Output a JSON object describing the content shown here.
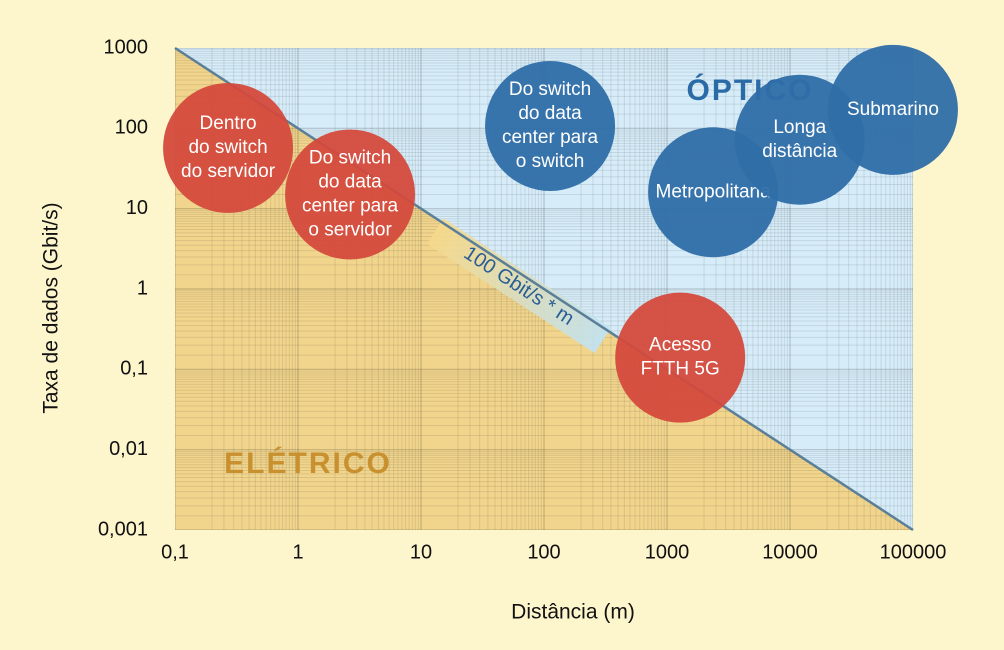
{
  "chart_data": {
    "type": "bubble",
    "x_label": "Distância (m)",
    "y_label": "Taxa de dados (Gbit/s)",
    "log_x": true,
    "log_y": true,
    "grid": true,
    "xlim": [
      0.1,
      100000
    ],
    "ylim": [
      0.001,
      1000
    ],
    "xticks": [
      {
        "value": 0.1,
        "label": "0,1"
      },
      1,
      10,
      100,
      1000,
      10000,
      100000
    ],
    "yticks": [
      {
        "value": 0.001,
        "label": "0,001"
      },
      {
        "value": 0.01,
        "label": "0,01"
      },
      {
        "value": 0.1,
        "label": "0,1"
      },
      1,
      10,
      100,
      1000
    ],
    "boundary": {
      "label": "100 Gbit/s * m",
      "x": [
        0.1,
        100000
      ],
      "y": [
        1000,
        0.001
      ],
      "color": "#5b7f99"
    },
    "regions": [
      {
        "label": "ÓPTICO",
        "color": "#d6ecf8",
        "text_color": "#2a6aa6"
      },
      {
        "label": "ELÉTRICO",
        "color": "#f1d58d",
        "text_color": "#c8902e"
      }
    ],
    "series": [
      {
        "name": "Dentro do switch do servidor",
        "lines": [
          "Dentro",
          "do switch",
          "do servidor"
        ],
        "color": "#d44a3c",
        "x": 0.27,
        "y": 57
      },
      {
        "name": "Do switch do data center para o servidor",
        "lines": [
          "Do switch",
          "do data",
          "center para",
          "o servidor"
        ],
        "color": "#d44a3c",
        "x": 2.65,
        "y": 15
      },
      {
        "name": "Do switch do data center para o switch",
        "lines": [
          "Do switch",
          "do data",
          "center para",
          "o switch"
        ],
        "color": "#2f6ea8",
        "x": 112,
        "y": 107
      },
      {
        "name": "Metropolitana",
        "lines": [
          "Metropolitana"
        ],
        "color": "#2f6ea8",
        "x": 2370,
        "y": 16
      },
      {
        "name": "Longa distância",
        "lines": [
          "Longa",
          "distância"
        ],
        "color": "#2f6ea8",
        "x": 12000,
        "y": 72
      },
      {
        "name": "Submarino",
        "lines": [
          "Submarino"
        ],
        "color": "#2f6ea8",
        "x": 68700,
        "y": 170
      },
      {
        "name": "Acesso FTTH 5G",
        "lines": [
          "Acesso",
          "FTTH 5G"
        ],
        "color": "#d44a3c",
        "x": 1280,
        "y": 0.14
      }
    ]
  }
}
